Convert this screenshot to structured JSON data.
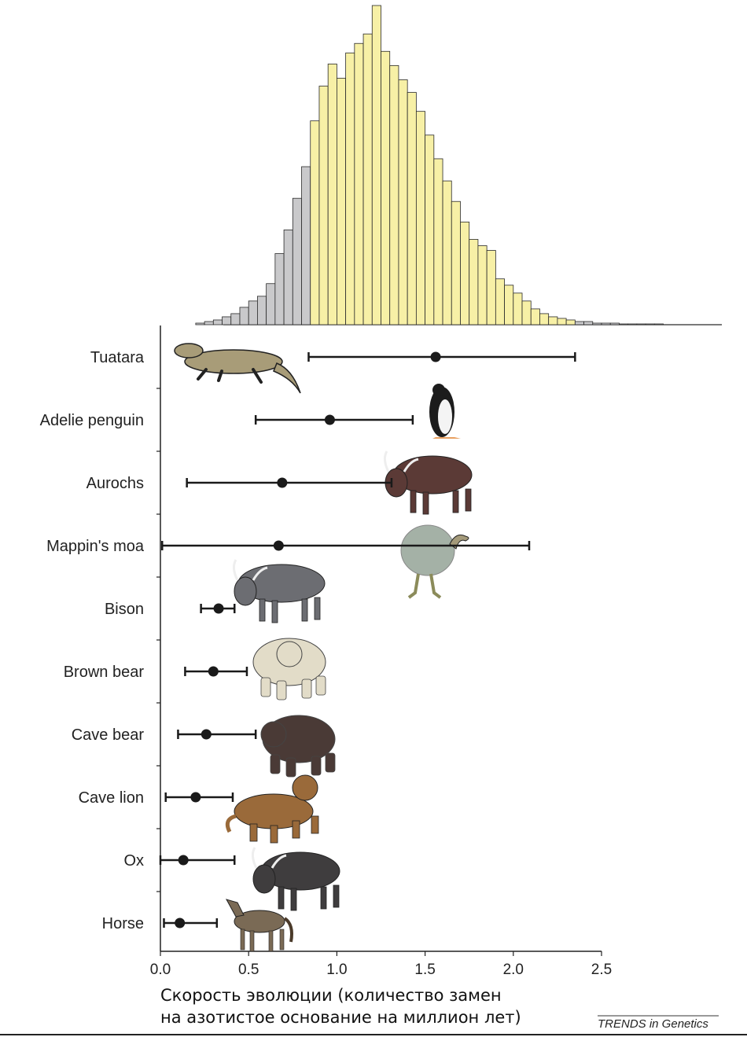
{
  "chart_data": [
    {
      "type": "histogram",
      "x_unit": "substitutions per base per million years",
      "bin_width": 0.05,
      "x_start": 0.2,
      "highlight_range": [
        0.84,
        2.34
      ],
      "colors": {
        "highlight": "#f7f0a6",
        "tail": "#c9c9cb",
        "stroke": "#2a2a2a"
      },
      "values": [
        2,
        4,
        6,
        10,
        14,
        22,
        30,
        36,
        52,
        90,
        120,
        160,
        200,
        258,
        302,
        330,
        312,
        344,
        356,
        368,
        404,
        346,
        328,
        310,
        294,
        270,
        240,
        210,
        182,
        156,
        130,
        108,
        100,
        94,
        58,
        50,
        40,
        30,
        20,
        14,
        10,
        8,
        6,
        4,
        4,
        2,
        2,
        2,
        1,
        1,
        1,
        1,
        1
      ]
    },
    {
      "type": "interval",
      "xlim": [
        0.0,
        2.5
      ],
      "x_ticks": [
        "0.0",
        "0.5",
        "1.0",
        "1.5",
        "2.0",
        "2.5"
      ],
      "x_tick_values": [
        0.0,
        0.5,
        1.0,
        1.5,
        2.0,
        2.5
      ],
      "xlabel_line1": "Скорость эволюции (количество замен",
      "xlabel_line2": "на азотистое основание на миллион лет)",
      "series": [
        {
          "label": "Tuatara",
          "mean": 1.56,
          "low": 0.84,
          "high": 2.35,
          "animal": "lizard",
          "color": "#a89c78"
        },
        {
          "label": "Adelie penguin",
          "mean": 0.96,
          "low": 0.54,
          "high": 1.43,
          "animal": "penguin",
          "color": "#1c1c1c"
        },
        {
          "label": "Aurochs",
          "mean": 0.69,
          "low": 0.15,
          "high": 1.31,
          "animal": "aurochs",
          "color": "#5b3a36"
        },
        {
          "label": "Mappin's moa",
          "mean": 0.67,
          "low": 0.01,
          "high": 2.09,
          "animal": "moa",
          "color": "#a4b1a6"
        },
        {
          "label": "Bison",
          "mean": 0.33,
          "low": 0.23,
          "high": 0.42,
          "animal": "bison",
          "color": "#6c6d72"
        },
        {
          "label": "Brown bear",
          "mean": 0.3,
          "low": 0.14,
          "high": 0.49,
          "animal": "bear",
          "color": "#e2dcc8"
        },
        {
          "label": "Cave bear",
          "mean": 0.26,
          "low": 0.1,
          "high": 0.54,
          "animal": "cavebear",
          "color": "#4a3a36"
        },
        {
          "label": "Cave lion",
          "mean": 0.2,
          "low": 0.03,
          "high": 0.41,
          "animal": "lion",
          "color": "#9a6a3a"
        },
        {
          "label": "Ox",
          "mean": 0.13,
          "low": 0.0,
          "high": 0.42,
          "animal": "ox",
          "color": "#3f3d3e"
        },
        {
          "label": "Horse",
          "mean": 0.11,
          "low": 0.02,
          "high": 0.32,
          "animal": "horse",
          "color": "#7a6a55"
        }
      ]
    }
  ],
  "credit": "TRENDS in Genetics"
}
